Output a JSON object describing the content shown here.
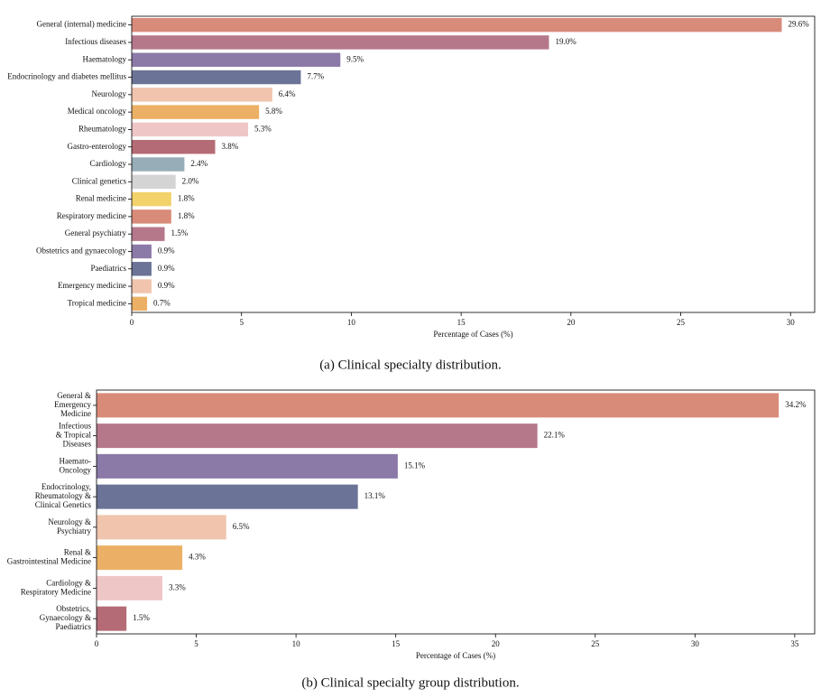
{
  "chart_data": [
    {
      "type": "barh",
      "caption": "(a) Clinical specialty distribution.",
      "xlabel": "Percentage of Cases (%)",
      "categories": [
        "General (internal) medicine",
        "Infectious diseases",
        "Haematology",
        "Endocrinology and diabetes mellitus",
        "Neurology",
        "Medical oncology",
        "Rheumatology",
        "Gastro-enterology",
        "Cardiology",
        "Clinical genetics",
        "Renal medicine",
        "Respiratory medicine",
        "General psychiatry",
        "Obstetrics and gynaecology",
        "Paediatrics",
        "Emergency medicine",
        "Tropical medicine"
      ],
      "values": [
        29.6,
        19.0,
        9.5,
        7.7,
        6.4,
        5.8,
        5.3,
        3.8,
        2.4,
        2.0,
        1.8,
        1.8,
        1.5,
        0.9,
        0.9,
        0.9,
        0.7
      ],
      "value_labels": [
        "29.6%",
        "19.0%",
        "9.5%",
        "7.7%",
        "6.4%",
        "5.8%",
        "5.3%",
        "3.8%",
        "2.4%",
        "2.0%",
        "1.8%",
        "1.8%",
        "1.5%",
        "0.9%",
        "0.9%",
        "0.9%",
        "0.7%"
      ],
      "colors": [
        "#d98b7a",
        "#b5788b",
        "#8b7aa8",
        "#6b7396",
        "#f0c4ad",
        "#ebb065",
        "#efc6c6",
        "#b56b75",
        "#97adb8",
        "#d4d4d4",
        "#f2d26b",
        "#d98b7a",
        "#b5788b",
        "#8b7aa8",
        "#6b7396",
        "#f0c4ad",
        "#ebb065"
      ],
      "xlim": [
        0,
        31.1
      ],
      "xticks": [
        0,
        5,
        10,
        15,
        20,
        25,
        30
      ]
    },
    {
      "type": "barh",
      "caption": "(b) Clinical specialty group distribution.",
      "xlabel": "Percentage of Cases (%)",
      "categories": [
        [
          "General &",
          "Emergency",
          "Medicine"
        ],
        [
          "Infectious",
          "& Tropical",
          "Diseases"
        ],
        [
          "Haemato-",
          "Oncology"
        ],
        [
          "Endocrinology,",
          "Rheumatology &",
          "Clinical Genetics"
        ],
        [
          "Neurology &",
          "Psychiatry"
        ],
        [
          "Renal &",
          "Gastrointestinal Medicine"
        ],
        [
          "Cardiology &",
          "Respiratory Medicine"
        ],
        [
          "Obstetrics,",
          "Gynaecology &",
          "Paediatrics"
        ]
      ],
      "values": [
        34.2,
        22.1,
        15.1,
        13.1,
        6.5,
        4.3,
        3.3,
        1.5
      ],
      "value_labels": [
        "34.2%",
        "22.1%",
        "15.1%",
        "13.1%",
        "6.5%",
        "4.3%",
        "3.3%",
        "1.5%"
      ],
      "colors": [
        "#d98b7a",
        "#b5788b",
        "#8b7aa8",
        "#6b7396",
        "#f0c4ad",
        "#ebb065",
        "#efc6c6",
        "#b56b75"
      ],
      "xlim": [
        0,
        36.0
      ],
      "xticks": [
        0,
        5,
        10,
        15,
        20,
        25,
        30,
        35
      ]
    }
  ]
}
